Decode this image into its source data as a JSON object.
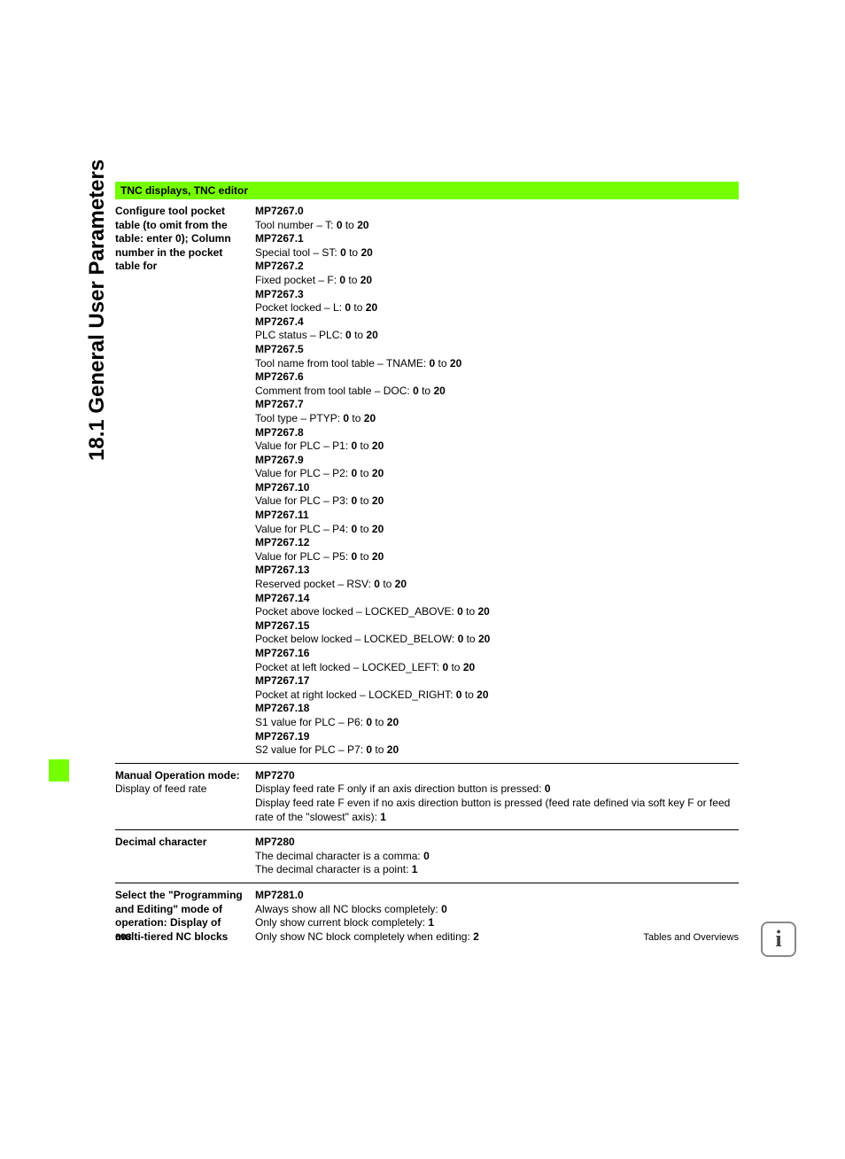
{
  "side_title": "18.1 General User Parameters",
  "header": "TNC displays, TNC editor",
  "rows": [
    {
      "left_html": "<b>Configure tool pocket table (to omit from the table: enter 0); Column number in the pocket table for</b>",
      "right": [
        {
          "h": "MP7267.0",
          "t": "Tool number – T: <b>0</b> to <b>20</b>"
        },
        {
          "h": "MP7267.1",
          "t": "Special tool – ST: <b>0</b> to <b>20</b>"
        },
        {
          "h": "MP7267.2",
          "t": "Fixed pocket – F: <b>0</b> to <b>20</b>"
        },
        {
          "h": "MP7267.3",
          "t": "Pocket locked – L: <b>0</b> to <b>20</b>"
        },
        {
          "h": "MP7267.4",
          "t": "PLC status – PLC: <b>0</b> to <b>20</b>"
        },
        {
          "h": "MP7267.5",
          "t": "Tool name from tool table – TNAME: <b>0</b> to <b>20</b>"
        },
        {
          "h": "MP7267.6",
          "t": "Comment from tool table – DOC: <b>0</b> to <b>20</b>"
        },
        {
          "h": "MP7267.7",
          "t": "Tool type – PTYP: <b>0</b> to <b>20</b>"
        },
        {
          "h": "MP7267.8",
          "t": "Value for PLC – P1: <b>0</b> to <b>20</b>"
        },
        {
          "h": "MP7267.9",
          "t": "Value for PLC – P2: <b>0</b> to <b>20</b>"
        },
        {
          "h": "MP7267.10",
          "t": "Value for PLC – P3: <b>0</b> to <b>20</b>"
        },
        {
          "h": "MP7267.11",
          "t": "Value for PLC – P4: <b>0</b> to <b>20</b>"
        },
        {
          "h": "MP7267.12",
          "t": "Value for PLC – P5: <b>0</b> to <b>20</b>"
        },
        {
          "h": "MP7267.13",
          "t": "Reserved pocket – RSV: <b>0</b> to <b>20</b>"
        },
        {
          "h": "MP7267.14",
          "t": "Pocket above locked – LOCKED_ABOVE: <b>0</b> to <b>20</b>"
        },
        {
          "h": "MP7267.15",
          "t": "Pocket below locked – LOCKED_BELOW: <b>0</b> to <b>20</b>"
        },
        {
          "h": "MP7267.16",
          "t": "Pocket at left locked – LOCKED_LEFT: <b>0</b> to <b>20</b>"
        },
        {
          "h": "MP7267.17",
          "t": "Pocket at right locked – LOCKED_RIGHT: <b>0</b> to <b>20</b>"
        },
        {
          "h": "MP7267.18",
          "t": "S1 value for PLC – P6: <b>0</b> to <b>20</b>"
        },
        {
          "h": "MP7267.19",
          "t": "S2 value for PLC – P7: <b>0</b> to <b>20</b>"
        }
      ]
    },
    {
      "left_html": "<b>Manual Operation mode:</b> Display of feed rate",
      "right": [
        {
          "h": "MP7270",
          "t": "Display feed rate F only if an axis direction button is pressed: <b>0</b><br>Display feed rate F even if no axis direction button is pressed (feed rate defined via soft key F or feed rate of the \"slowest\" axis): <b>1</b>"
        }
      ]
    },
    {
      "left_html": "<b>Decimal character</b>",
      "right": [
        {
          "h": "MP7280",
          "t": "The decimal character is a comma: <b>0</b><br>The decimal character is a point: <b>1</b>"
        }
      ]
    },
    {
      "left_html": "<b>Select the \"Programming and Editing\" mode of operation: Display of multi-tiered NC blocks</b>",
      "right": [
        {
          "h": "MP7281.0",
          "t": "Always show all NC blocks completely: <b>0</b><br>Only show current block completely: <b>1</b><br>Only show NC block completely when editing: <b>2</b>"
        }
      ]
    }
  ],
  "page_number": "608",
  "footer_text": "Tables and Overviews",
  "info_glyph": "i",
  "colors": {
    "accent": "#76ff00",
    "text": "#000000",
    "bg": "#ffffff"
  }
}
